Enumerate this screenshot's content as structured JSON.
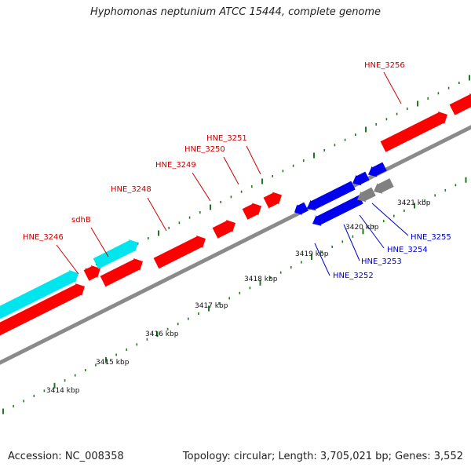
{
  "title": "Hyphomonas neptunium ATCC 15444, complete genome",
  "accession_text": "Accession: NC_008358",
  "summary_text": "Topology: circular; Length: 3,705,021 bp; Genes: 3,552",
  "colors": {
    "backbone": "#8a8a8a",
    "tick": "#1f7a1f",
    "forward_label": "#cc0000",
    "reverse_label": "#0000cc",
    "red_gene": "#ff0000",
    "cyan_gene": "#00e5ee",
    "blue_gene": "#0000ee",
    "gray_gene": "#808080"
  },
  "scale_labels": [
    "3414 kbp",
    "3415 kbp",
    "3416 kbp",
    "3417 kbp",
    "3418 kbp",
    "3419 kbp",
    "3420 kbp",
    "3421 kbp"
  ],
  "forward_gene_labels": [
    "HNE_3246",
    "sdhB",
    "HNE_3248",
    "HNE_3249",
    "HNE_3250",
    "HNE_3251",
    "HNE_3256"
  ],
  "reverse_gene_labels": [
    "HNE_3252",
    "HNE_3253",
    "HNE_3254",
    "HNE_3255"
  ]
}
